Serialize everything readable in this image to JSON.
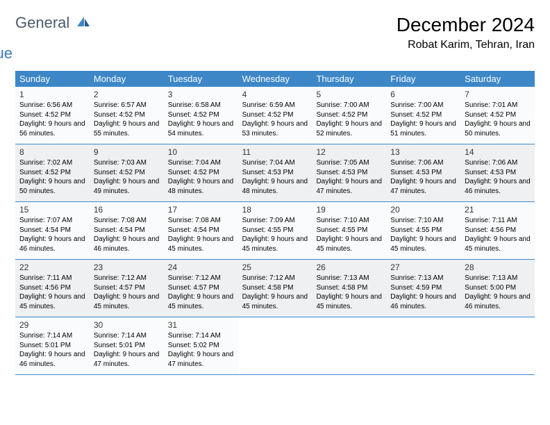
{
  "logo": {
    "general": "General",
    "blue": "Blue"
  },
  "title": {
    "month": "December 2024",
    "location": "Robat Karim, Tehran, Iran"
  },
  "colors": {
    "header_bg": "#3d87c7",
    "header_text": "#ffffff",
    "border": "#3d87c7",
    "cell_bg_a": "#fafbfc",
    "cell_bg_b": "#eef0f2"
  },
  "weekdays": [
    "Sunday",
    "Monday",
    "Tuesday",
    "Wednesday",
    "Thursday",
    "Friday",
    "Saturday"
  ],
  "weeks": [
    [
      {
        "n": "1",
        "sunrise": "6:56 AM",
        "sunset": "4:52 PM",
        "daylight": "9 hours and 56 minutes."
      },
      {
        "n": "2",
        "sunrise": "6:57 AM",
        "sunset": "4:52 PM",
        "daylight": "9 hours and 55 minutes."
      },
      {
        "n": "3",
        "sunrise": "6:58 AM",
        "sunset": "4:52 PM",
        "daylight": "9 hours and 54 minutes."
      },
      {
        "n": "4",
        "sunrise": "6:59 AM",
        "sunset": "4:52 PM",
        "daylight": "9 hours and 53 minutes."
      },
      {
        "n": "5",
        "sunrise": "7:00 AM",
        "sunset": "4:52 PM",
        "daylight": "9 hours and 52 minutes."
      },
      {
        "n": "6",
        "sunrise": "7:00 AM",
        "sunset": "4:52 PM",
        "daylight": "9 hours and 51 minutes."
      },
      {
        "n": "7",
        "sunrise": "7:01 AM",
        "sunset": "4:52 PM",
        "daylight": "9 hours and 50 minutes."
      }
    ],
    [
      {
        "n": "8",
        "sunrise": "7:02 AM",
        "sunset": "4:52 PM",
        "daylight": "9 hours and 50 minutes."
      },
      {
        "n": "9",
        "sunrise": "7:03 AM",
        "sunset": "4:52 PM",
        "daylight": "9 hours and 49 minutes."
      },
      {
        "n": "10",
        "sunrise": "7:04 AM",
        "sunset": "4:52 PM",
        "daylight": "9 hours and 48 minutes."
      },
      {
        "n": "11",
        "sunrise": "7:04 AM",
        "sunset": "4:53 PM",
        "daylight": "9 hours and 48 minutes."
      },
      {
        "n": "12",
        "sunrise": "7:05 AM",
        "sunset": "4:53 PM",
        "daylight": "9 hours and 47 minutes."
      },
      {
        "n": "13",
        "sunrise": "7:06 AM",
        "sunset": "4:53 PM",
        "daylight": "9 hours and 47 minutes."
      },
      {
        "n": "14",
        "sunrise": "7:06 AM",
        "sunset": "4:53 PM",
        "daylight": "9 hours and 46 minutes."
      }
    ],
    [
      {
        "n": "15",
        "sunrise": "7:07 AM",
        "sunset": "4:54 PM",
        "daylight": "9 hours and 46 minutes."
      },
      {
        "n": "16",
        "sunrise": "7:08 AM",
        "sunset": "4:54 PM",
        "daylight": "9 hours and 46 minutes."
      },
      {
        "n": "17",
        "sunrise": "7:08 AM",
        "sunset": "4:54 PM",
        "daylight": "9 hours and 45 minutes."
      },
      {
        "n": "18",
        "sunrise": "7:09 AM",
        "sunset": "4:55 PM",
        "daylight": "9 hours and 45 minutes."
      },
      {
        "n": "19",
        "sunrise": "7:10 AM",
        "sunset": "4:55 PM",
        "daylight": "9 hours and 45 minutes."
      },
      {
        "n": "20",
        "sunrise": "7:10 AM",
        "sunset": "4:55 PM",
        "daylight": "9 hours and 45 minutes."
      },
      {
        "n": "21",
        "sunrise": "7:11 AM",
        "sunset": "4:56 PM",
        "daylight": "9 hours and 45 minutes."
      }
    ],
    [
      {
        "n": "22",
        "sunrise": "7:11 AM",
        "sunset": "4:56 PM",
        "daylight": "9 hours and 45 minutes."
      },
      {
        "n": "23",
        "sunrise": "7:12 AM",
        "sunset": "4:57 PM",
        "daylight": "9 hours and 45 minutes."
      },
      {
        "n": "24",
        "sunrise": "7:12 AM",
        "sunset": "4:57 PM",
        "daylight": "9 hours and 45 minutes."
      },
      {
        "n": "25",
        "sunrise": "7:12 AM",
        "sunset": "4:58 PM",
        "daylight": "9 hours and 45 minutes."
      },
      {
        "n": "26",
        "sunrise": "7:13 AM",
        "sunset": "4:58 PM",
        "daylight": "9 hours and 45 minutes."
      },
      {
        "n": "27",
        "sunrise": "7:13 AM",
        "sunset": "4:59 PM",
        "daylight": "9 hours and 46 minutes."
      },
      {
        "n": "28",
        "sunrise": "7:13 AM",
        "sunset": "5:00 PM",
        "daylight": "9 hours and 46 minutes."
      }
    ],
    [
      {
        "n": "29",
        "sunrise": "7:14 AM",
        "sunset": "5:01 PM",
        "daylight": "9 hours and 46 minutes."
      },
      {
        "n": "30",
        "sunrise": "7:14 AM",
        "sunset": "5:01 PM",
        "daylight": "9 hours and 47 minutes."
      },
      {
        "n": "31",
        "sunrise": "7:14 AM",
        "sunset": "5:02 PM",
        "daylight": "9 hours and 47 minutes."
      },
      null,
      null,
      null,
      null
    ]
  ],
  "labels": {
    "sunrise": "Sunrise:",
    "sunset": "Sunset:",
    "daylight": "Daylight:"
  }
}
